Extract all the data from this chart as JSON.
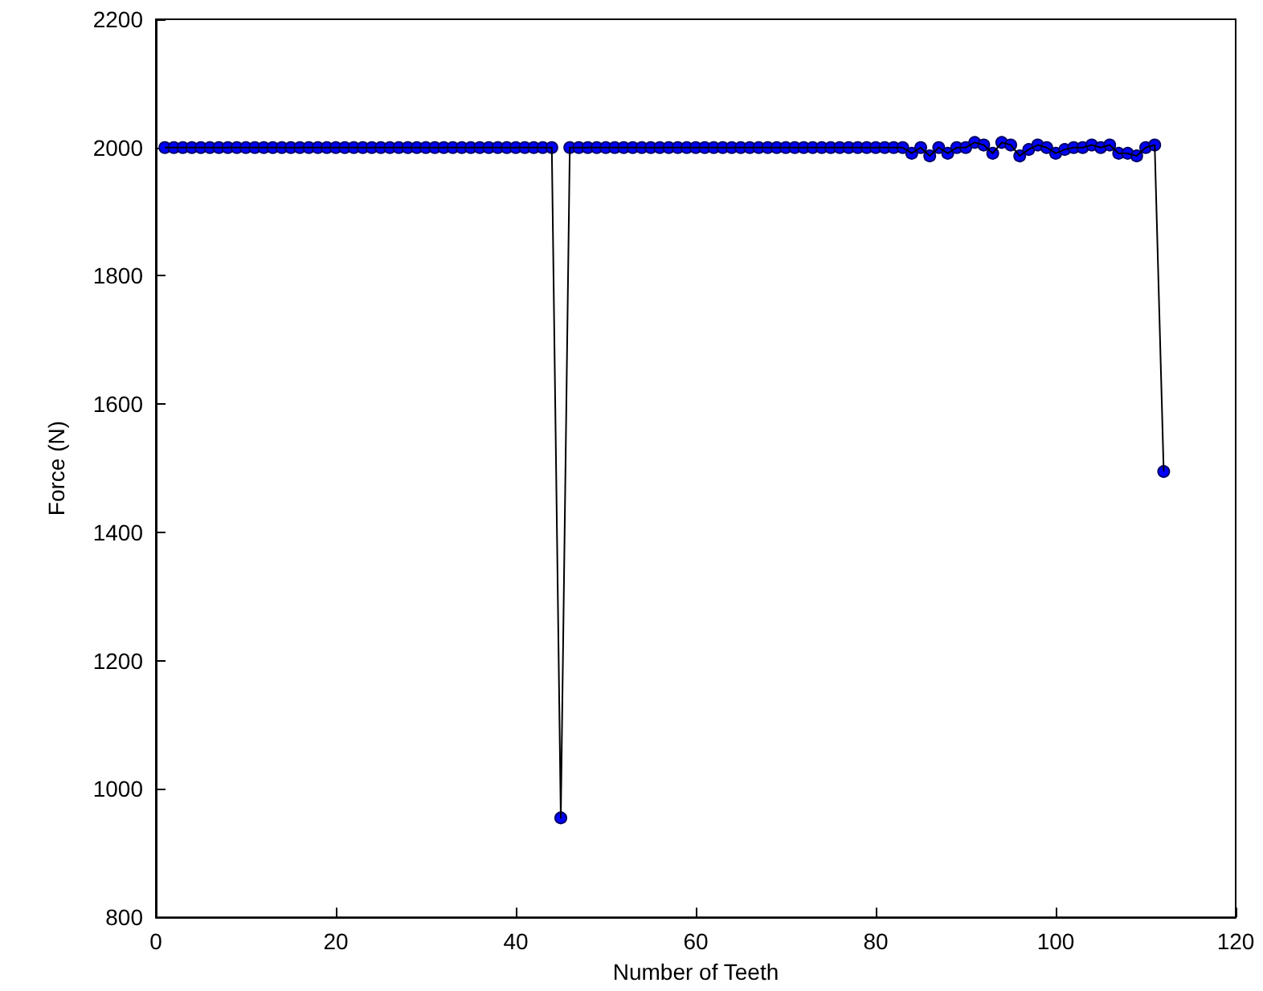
{
  "chart_data": {
    "type": "line",
    "xlabel": "Number of Teeth",
    "ylabel": "Force (N)",
    "x": [
      1,
      2,
      3,
      4,
      5,
      6,
      7,
      8,
      9,
      10,
      11,
      12,
      13,
      14,
      15,
      16,
      17,
      18,
      19,
      20,
      21,
      22,
      23,
      24,
      25,
      26,
      27,
      28,
      29,
      30,
      31,
      32,
      33,
      34,
      35,
      36,
      37,
      38,
      39,
      40,
      41,
      42,
      43,
      44,
      45,
      46,
      47,
      48,
      49,
      50,
      51,
      52,
      53,
      54,
      55,
      56,
      57,
      58,
      59,
      60,
      61,
      62,
      63,
      64,
      65,
      66,
      67,
      68,
      69,
      70,
      71,
      72,
      73,
      74,
      75,
      76,
      77,
      78,
      79,
      80,
      81,
      82,
      83,
      84,
      85,
      86,
      87,
      88,
      89,
      90,
      91,
      92,
      93,
      94,
      95,
      96,
      97,
      98,
      99,
      100,
      101,
      102,
      103,
      104,
      105,
      106,
      107,
      108,
      109,
      110,
      111,
      112
    ],
    "series": [
      {
        "color": "#0000ff",
        "values": [
          2000,
          2000,
          2000,
          2000,
          2000,
          2000,
          2000,
          2000,
          2000,
          2000,
          2000,
          2000,
          2000,
          2000,
          2000,
          2000,
          2000,
          2000,
          2000,
          2000,
          2000,
          2000,
          2000,
          2000,
          2000,
          2000,
          2000,
          2000,
          2000,
          2000,
          2000,
          2000,
          2000,
          2000,
          2000,
          2000,
          2000,
          2000,
          2000,
          2000,
          2000,
          2000,
          2000,
          2000,
          955,
          2000,
          2000,
          2000,
          2000,
          2000,
          2000,
          2000,
          2000,
          2000,
          2000,
          2000,
          2000,
          2000,
          2000,
          2000,
          2000,
          2000,
          2000,
          2000,
          2000,
          2000,
          2000,
          2000,
          2000,
          2000,
          2000,
          2000,
          2000,
          2000,
          2000,
          2000,
          2000,
          2000,
          2000,
          2000,
          2000,
          2000,
          2000,
          1991,
          2000,
          1987,
          2000,
          1991,
          2000,
          2000,
          2008,
          2004,
          1991,
          2008,
          2004,
          1987,
          1997,
          2004,
          2000,
          1991,
          1997,
          2000,
          2000,
          2004,
          2000,
          2004,
          1991,
          1991,
          1987,
          2000,
          2004,
          1495
        ]
      }
    ],
    "xlim": [
      0,
      120
    ],
    "xticks": [
      0,
      20,
      40,
      60,
      80,
      100,
      120
    ],
    "ylim": [
      800,
      2200
    ],
    "yticks": [
      800,
      1000,
      1200,
      1400,
      1600,
      1800,
      2000,
      2200
    ],
    "grid": false,
    "marker": "circle",
    "line_style": "solid"
  }
}
